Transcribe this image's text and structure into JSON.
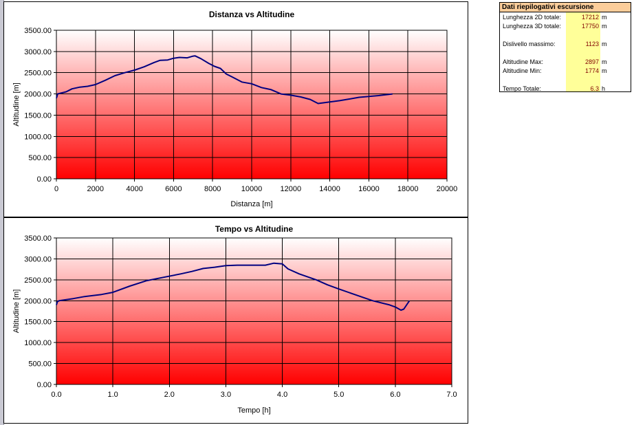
{
  "colors": {
    "line": "#000080",
    "plot_gradient_top": "#ffffff",
    "plot_gradient_bottom": "#ff0000",
    "summary_header": "#fbcd9a",
    "summary_values_bg": "#ffff99",
    "summary_value_text": "#800000"
  },
  "chart_data": [
    {
      "type": "line",
      "title": "Distanza vs Altitudine",
      "xlabel": "Distanza [m]",
      "ylabel": "Altitudine [m]",
      "xlim": [
        0,
        20000
      ],
      "ylim": [
        0,
        3500
      ],
      "x_ticks": [
        0,
        2000,
        4000,
        6000,
        8000,
        10000,
        12000,
        14000,
        16000,
        18000,
        20000
      ],
      "x_tick_labels": [
        "0",
        "2000",
        "4000",
        "6000",
        "8000",
        "10000",
        "12000",
        "14000",
        "16000",
        "18000",
        "20000"
      ],
      "y_ticks": [
        0,
        500,
        1000,
        1500,
        2000,
        2500,
        3000,
        3500
      ],
      "y_tick_labels": [
        "0.00",
        "500.00",
        "1000.00",
        "1500.00",
        "2000.00",
        "2500.00",
        "3000.00",
        "3500.00"
      ],
      "grid": true,
      "series": [
        {
          "x": [
            0,
            30,
            60,
            500,
            800,
            1200,
            1600,
            2000,
            2500,
            3000,
            3500,
            4000,
            4500,
            5000,
            5300,
            5700,
            6000,
            6300,
            6700,
            7000,
            7100,
            7400,
            7800,
            8100,
            8400,
            8700,
            9000,
            9500,
            10000,
            10500,
            11000,
            11500,
            12000,
            12500,
            13000,
            13400,
            14000,
            14500,
            15000,
            15500,
            16000,
            16500,
            17212
          ],
          "y": [
            1900,
            1940,
            2000,
            2050,
            2120,
            2160,
            2180,
            2220,
            2320,
            2430,
            2500,
            2560,
            2640,
            2740,
            2790,
            2800,
            2840,
            2860,
            2850,
            2890,
            2897,
            2830,
            2720,
            2650,
            2600,
            2470,
            2400,
            2280,
            2240,
            2150,
            2100,
            2000,
            1970,
            1930,
            1870,
            1774,
            1810,
            1840,
            1880,
            1920,
            1940,
            1960,
            2000
          ]
        }
      ]
    },
    {
      "type": "line",
      "title": "Tempo vs Altitudine",
      "xlabel": "Tempo [h]",
      "ylabel": "Altitudine [m]",
      "xlim": [
        0,
        7
      ],
      "ylim": [
        0,
        3500
      ],
      "x_ticks": [
        0,
        1,
        2,
        3,
        4,
        5,
        6,
        7
      ],
      "x_tick_labels": [
        "0.0",
        "1.0",
        "2.0",
        "3.0",
        "4.0",
        "5.0",
        "6.0",
        "7.0"
      ],
      "y_ticks": [
        0,
        500,
        1000,
        1500,
        2000,
        2500,
        3000,
        3500
      ],
      "y_tick_labels": [
        "0.00",
        "500.00",
        "1000.00",
        "1500.00",
        "2000.00",
        "2500.00",
        "3000.00",
        "3500.00"
      ],
      "grid": true,
      "series": [
        {
          "x": [
            0,
            0.02,
            0.05,
            0.3,
            0.5,
            0.8,
            1.0,
            1.3,
            1.6,
            1.9,
            2.2,
            2.4,
            2.6,
            2.8,
            3.0,
            3.2,
            3.5,
            3.7,
            3.85,
            4.0,
            4.1,
            4.3,
            4.6,
            4.8,
            5.0,
            5.3,
            5.6,
            5.9,
            6.0,
            6.1,
            6.15,
            6.25
          ],
          "y": [
            1900,
            1980,
            2000,
            2050,
            2100,
            2150,
            2200,
            2350,
            2480,
            2560,
            2640,
            2700,
            2770,
            2800,
            2840,
            2850,
            2850,
            2850,
            2897,
            2880,
            2760,
            2640,
            2500,
            2380,
            2280,
            2140,
            2000,
            1900,
            1850,
            1774,
            1800,
            2000
          ]
        }
      ]
    }
  ],
  "summary": {
    "title": "Dati riepilogativi escursione",
    "rows": [
      {
        "label": "Lunghezza 2D totale:",
        "value": "17212",
        "unit": "m"
      },
      {
        "label": "Lunghezza 3D totale:",
        "value": "17750",
        "unit": "m"
      },
      {
        "label": "Dislivello massimo:",
        "value": "1123",
        "unit": "m"
      },
      {
        "label": "Altitudine Max:",
        "value": "2897",
        "unit": "m"
      },
      {
        "label": "Altitudine Min:",
        "value": "1774",
        "unit": "m"
      },
      {
        "label": "Tempo Totale:",
        "value": "6.3",
        "unit": "h"
      }
    ]
  }
}
